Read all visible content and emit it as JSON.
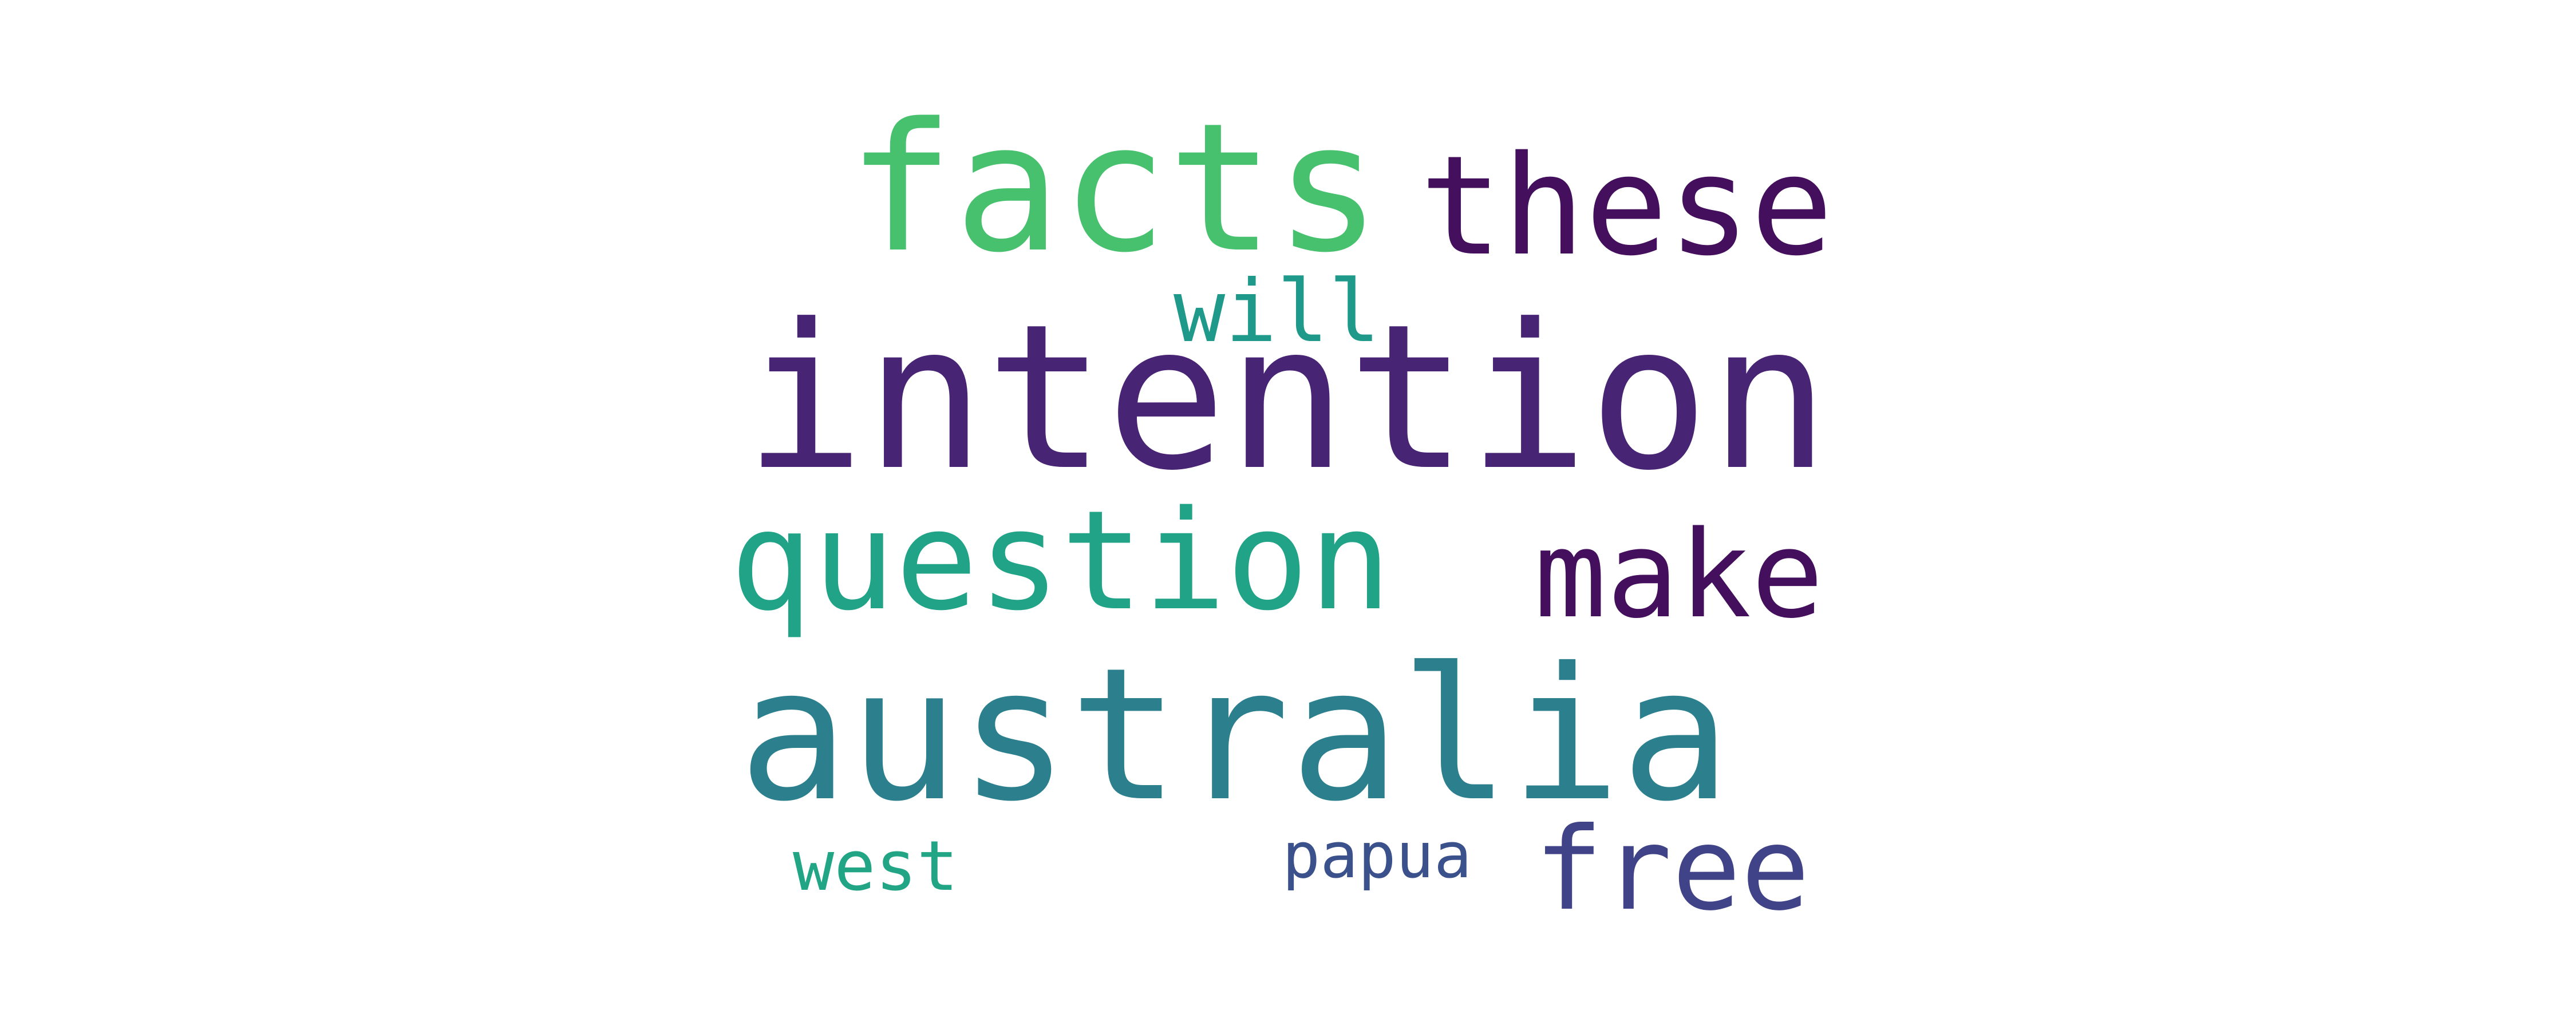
{
  "words": {
    "intention": {
      "text": "intention",
      "color": "#482475"
    },
    "australia": {
      "text": "australia",
      "color": "#2c808e"
    },
    "facts": {
      "text": "facts",
      "color": "#48c16e"
    },
    "question": {
      "text": "question",
      "color": "#20a386"
    },
    "these": {
      "text": "these",
      "color": "#440f5c"
    },
    "make": {
      "text": "make",
      "color": "#440f5c"
    },
    "free": {
      "text": "free",
      "color": "#404387"
    },
    "will": {
      "text": "will",
      "color": "#1f9a8a"
    },
    "west": {
      "text": "west",
      "color": "#21a585"
    },
    "papua": {
      "text": "papua",
      "color": "#3b518b"
    }
  }
}
